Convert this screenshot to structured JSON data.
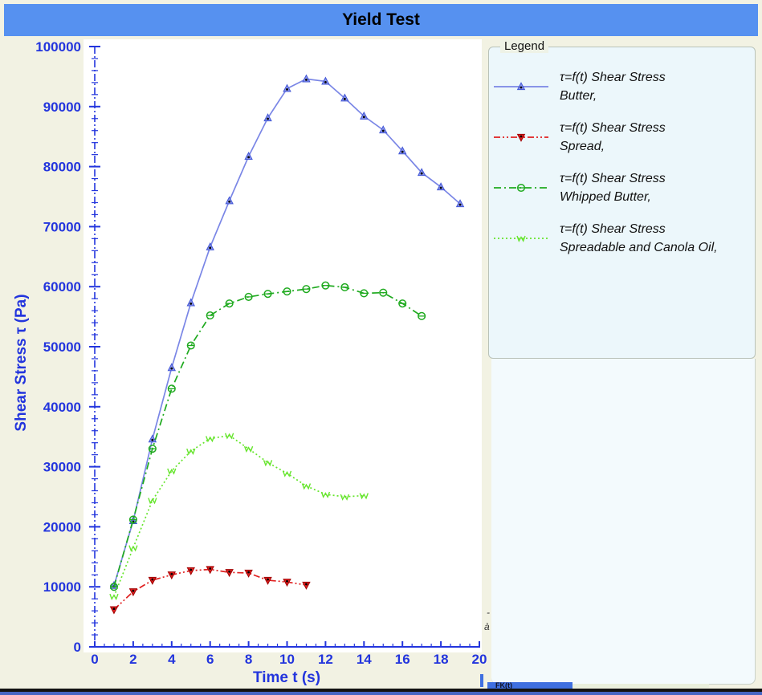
{
  "window": {
    "title": "Yield Test",
    "colors": {
      "titlebar_bg": "#5691f0",
      "outer_bg": "#f2f2e3",
      "panel_bg": "#ecf7fb",
      "axis_blue": "#2335dd",
      "plot_bg": "#ffffff"
    }
  },
  "legend": {
    "title": "Legend",
    "items": [
      {
        "line1": "τ=f(t) Shear Stress",
        "line2": "Butter,"
      },
      {
        "line1": "τ=f(t) Shear Stress",
        "line2": "Spread,"
      },
      {
        "line1": "τ=f(t) Shear Stress",
        "line2": "Whipped Butter,"
      },
      {
        "line1": "τ=f(t) Shear Stress",
        "line2": "Spreadable and Canola Oil,"
      }
    ]
  },
  "artifacts": {
    "dash": "-",
    "char": "à",
    "partial_button": "FK(t)"
  },
  "chart_data": {
    "type": "line",
    "title": "Yield Test",
    "xlabel": "Time t (s)",
    "ylabel": "Shear Stress τ (Pa)",
    "xlim": [
      0,
      20
    ],
    "ylim": [
      0,
      100000
    ],
    "x_tick_step": 2,
    "x_minor_step": 0.5,
    "y_tick_step": 10000,
    "y_minor_step": 2000,
    "grid": false,
    "legend_position": "right",
    "series": [
      {
        "name": "τ=f(t) Shear Stress Butter,",
        "color": "#7a86e6",
        "marker_color": "#4156d6",
        "line_style": "solid",
        "marker": "triangle-up",
        "x": [
          1,
          2,
          3,
          4,
          5,
          6,
          7,
          8,
          9,
          10,
          11,
          12,
          13,
          14,
          15,
          16,
          17,
          18,
          19
        ],
        "y": [
          10200,
          21000,
          34600,
          46500,
          57300,
          66600,
          74300,
          81700,
          88100,
          93000,
          94600,
          94200,
          91400,
          88400,
          86100,
          82600,
          79000,
          76600,
          73800
        ]
      },
      {
        "name": "τ=f(t) Shear Stress Spread,",
        "color": "#e02020",
        "marker_color": "#a00000",
        "line_style": "dash-dot-dot",
        "marker": "triangle-down",
        "x": [
          1,
          2,
          3,
          4,
          5,
          6,
          7,
          8,
          9,
          10,
          11
        ],
        "y": [
          6200,
          9200,
          11100,
          12000,
          12700,
          12900,
          12400,
          12300,
          11100,
          10800,
          10300
        ]
      },
      {
        "name": "τ=f(t) Shear Stress Whipped Butter,",
        "color": "#1faa1f",
        "marker_color": "#1faa1f",
        "line_style": "dash-dot",
        "marker": "circle-dash",
        "x": [
          1,
          2,
          3,
          4,
          5,
          6,
          7,
          8,
          9,
          10,
          11,
          12,
          13,
          14,
          15,
          16,
          17
        ],
        "y": [
          10000,
          21200,
          33000,
          43000,
          50200,
          55200,
          57200,
          58300,
          58800,
          59200,
          59600,
          60200,
          59900,
          58900,
          59000,
          57200,
          55100
        ]
      },
      {
        "name": "τ=f(t) Shear Stress Spreadable and Canola Oil,",
        "color": "#67e52e",
        "marker_color": "#67e52e",
        "line_style": "dotted",
        "marker": "zigzag",
        "x": [
          1,
          2,
          3,
          4,
          5,
          6,
          7,
          8,
          9,
          10,
          11,
          12,
          13,
          14
        ],
        "y": [
          8400,
          16500,
          24400,
          29300,
          32600,
          34700,
          35200,
          33000,
          30700,
          28900,
          26800,
          25400,
          25000,
          25200
        ]
      }
    ]
  }
}
